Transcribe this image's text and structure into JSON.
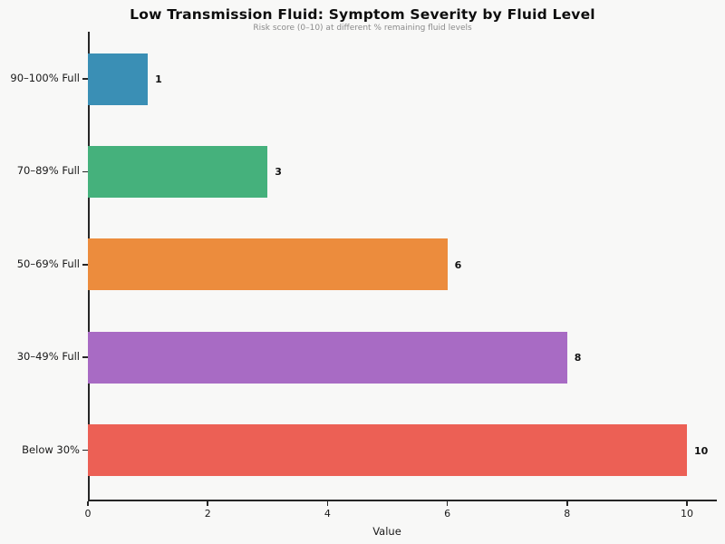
{
  "chart_data": {
    "type": "bar",
    "orientation": "horizontal",
    "title": "Low Transmission Fluid: Symptom Severity by Fluid Level",
    "subtitle": "Risk score (0–10) at different % remaining fluid levels",
    "categories": [
      "90–100% Full",
      "70–89% Full",
      "50–69% Full",
      "30–49% Full",
      "Below 30%"
    ],
    "values": [
      1,
      3,
      6,
      8,
      10
    ],
    "value_labels": [
      "1",
      "3",
      "6",
      "8",
      "10"
    ],
    "bar_colors": [
      "#3A8FB5",
      "#45B17C",
      "#EC8C3D",
      "#A86BC4",
      "#EC6055"
    ],
    "xlabel": "Value",
    "x_ticks": [
      0,
      2,
      4,
      6,
      8,
      10
    ],
    "xlim": [
      0,
      10.5
    ],
    "ylim_note": "categories listed top to bottom",
    "grid": false,
    "legend": "none",
    "background_color": "#f8f8f7",
    "axis_color": "#262626",
    "value_label_color": "#111111"
  }
}
